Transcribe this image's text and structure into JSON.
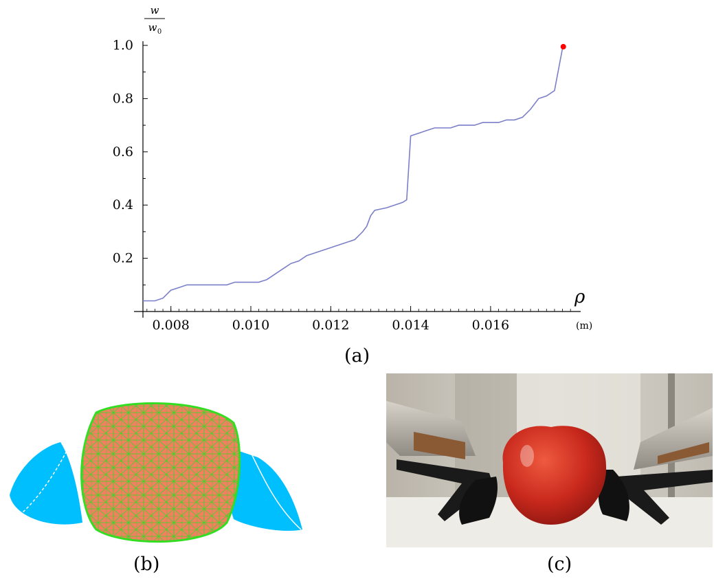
{
  "chart_data": {
    "type": "line",
    "title": "",
    "xlabel": "ρ",
    "x_unit": "(m)",
    "ylabel": {
      "numerator": "w",
      "denominator": "w",
      "denominator_subscript": "0"
    },
    "xlim": [
      0.0073,
      0.0181
    ],
    "ylim": [
      0.0,
      1.0
    ],
    "x_ticks": [
      "0.008",
      "0.010",
      "0.012",
      "0.014",
      "0.016"
    ],
    "y_ticks": [
      "0.2",
      "0.4",
      "0.6",
      "0.8",
      "1.0"
    ],
    "grid": false,
    "series": [
      {
        "color": "#7a7fc9",
        "x": [
          0.0073,
          0.0076,
          0.0078,
          0.008,
          0.0082,
          0.0084,
          0.0088,
          0.009,
          0.0094,
          0.0096,
          0.0098,
          0.0102,
          0.0104,
          0.0106,
          0.0108,
          0.011,
          0.0112,
          0.0114,
          0.0116,
          0.0118,
          0.012,
          0.0122,
          0.0124,
          0.0126,
          0.0128,
          0.0129,
          0.013,
          0.0131,
          0.0134,
          0.0138,
          0.0139,
          0.014,
          0.0142,
          0.0144,
          0.0146,
          0.0148,
          0.015,
          0.0152,
          0.0154,
          0.0156,
          0.0158,
          0.016,
          0.0162,
          0.0164,
          0.0166,
          0.0168,
          0.017,
          0.0172,
          0.0174,
          0.0176,
          0.0178
        ],
        "y": [
          0.04,
          0.04,
          0.05,
          0.08,
          0.09,
          0.1,
          0.1,
          0.1,
          0.1,
          0.11,
          0.11,
          0.11,
          0.12,
          0.14,
          0.16,
          0.18,
          0.19,
          0.21,
          0.22,
          0.23,
          0.24,
          0.25,
          0.26,
          0.27,
          0.3,
          0.32,
          0.36,
          0.38,
          0.39,
          0.41,
          0.42,
          0.66,
          0.67,
          0.68,
          0.69,
          0.69,
          0.69,
          0.7,
          0.7,
          0.7,
          0.71,
          0.71,
          0.71,
          0.72,
          0.72,
          0.73,
          0.76,
          0.8,
          0.81,
          0.83,
          0.99
        ]
      }
    ],
    "highlight_point": {
      "x": 0.01782,
      "y": 0.995,
      "color": "#ff0000"
    }
  },
  "captions": {
    "a": "(a)",
    "b": "(b)",
    "c": "(c)"
  },
  "colors": {
    "cup": "#00bfff",
    "mesh_fill": "#f08060",
    "mesh_edge": "#22dd22",
    "tomato": "#c8281c",
    "gripper": "#1a1a1a"
  }
}
